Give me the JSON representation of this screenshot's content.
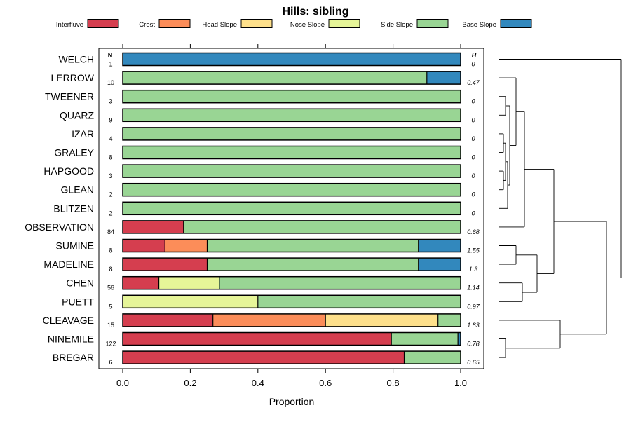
{
  "chart_data": {
    "type": "bar",
    "orientation": "horizontal",
    "stacked": true,
    "title": "Hills: sibling",
    "xlabel": "Proportion",
    "ylabel": "",
    "xlim": [
      -0.07,
      1.07
    ],
    "xticks": [
      0.0,
      0.2,
      0.4,
      0.6,
      0.8,
      1.0
    ],
    "xtick_labels": [
      "0.0",
      "0.2",
      "0.4",
      "0.6",
      "0.8",
      "1.0"
    ],
    "n_header": "N",
    "h_header": "H",
    "legend_position": "top",
    "legend": [
      {
        "name": "Interfluve",
        "color": "#D53E4F"
      },
      {
        "name": "Crest",
        "color": "#FC8D59"
      },
      {
        "name": "Head Slope",
        "color": "#FEE08B"
      },
      {
        "name": "Nose Slope",
        "color": "#E6F598"
      },
      {
        "name": "Side Slope",
        "color": "#99D594"
      },
      {
        "name": "Base Slope",
        "color": "#3288BD"
      }
    ],
    "rows": [
      {
        "label": "WELCH",
        "n": "1",
        "h": "0",
        "values": [
          0,
          0,
          0,
          0,
          0,
          1.0
        ]
      },
      {
        "label": "LERROW",
        "n": "10",
        "h": "0.47",
        "values": [
          0,
          0,
          0,
          0,
          0.9,
          0.1
        ]
      },
      {
        "label": "TWEENER",
        "n": "3",
        "h": "0",
        "values": [
          0,
          0,
          0,
          0,
          1.0,
          0
        ]
      },
      {
        "label": "QUARZ",
        "n": "9",
        "h": "0",
        "values": [
          0,
          0,
          0,
          0,
          1.0,
          0
        ]
      },
      {
        "label": "IZAR",
        "n": "4",
        "h": "0",
        "values": [
          0,
          0,
          0,
          0,
          1.0,
          0
        ]
      },
      {
        "label": "GRALEY",
        "n": "8",
        "h": "0",
        "values": [
          0,
          0,
          0,
          0,
          1.0,
          0
        ]
      },
      {
        "label": "HAPGOOD",
        "n": "3",
        "h": "0",
        "values": [
          0,
          0,
          0,
          0,
          1.0,
          0
        ]
      },
      {
        "label": "GLEAN",
        "n": "2",
        "h": "0",
        "values": [
          0,
          0,
          0,
          0,
          1.0,
          0
        ]
      },
      {
        "label": "BLITZEN",
        "n": "2",
        "h": "0",
        "values": [
          0,
          0,
          0,
          0,
          1.0,
          0
        ]
      },
      {
        "label": "OBSERVATION",
        "n": "84",
        "h": "0.68",
        "values": [
          0.18,
          0,
          0,
          0,
          0.82,
          0
        ]
      },
      {
        "label": "SUMINE",
        "n": "8",
        "h": "1.55",
        "values": [
          0.125,
          0.125,
          0,
          0,
          0.625,
          0.125
        ]
      },
      {
        "label": "MADELINE",
        "n": "8",
        "h": "1.3",
        "values": [
          0.25,
          0,
          0,
          0,
          0.625,
          0.125
        ]
      },
      {
        "label": "CHEN",
        "n": "56",
        "h": "1.14",
        "values": [
          0.107,
          0,
          0,
          0.179,
          0.714,
          0
        ]
      },
      {
        "label": "PUETT",
        "n": "5",
        "h": "0.97",
        "values": [
          0,
          0,
          0,
          0.4,
          0.6,
          0
        ]
      },
      {
        "label": "CLEAVAGE",
        "n": "15",
        "h": "1.83",
        "values": [
          0.267,
          0.333,
          0.333,
          0,
          0.067,
          0
        ]
      },
      {
        "label": "NINEMILE",
        "n": "122",
        "h": "0.78",
        "values": [
          0.795,
          0,
          0,
          0,
          0.197,
          0.008
        ]
      },
      {
        "label": "BREGAR",
        "n": "6",
        "h": "0.65",
        "values": [
          0.833,
          0,
          0,
          0,
          0.167,
          0
        ]
      }
    ],
    "dendrogram": {
      "leaves_in_order": [
        "WELCH",
        "LERROW",
        "TWEENER",
        "QUARZ",
        "IZAR",
        "GRALEY",
        "HAPGOOD",
        "GLEAN",
        "BLITZEN",
        "OBSERVATION",
        "SUMINE",
        "MADELINE",
        "CHEN",
        "PUETT",
        "CLEAVAGE",
        "NINEMILE",
        "BREGAR"
      ],
      "merges": [
        {
          "a": "TWEENER",
          "b": "QUARZ",
          "height": 0.03
        },
        {
          "a": "IZAR",
          "b": "GRALEY",
          "height": 0.02
        },
        {
          "a": "HAPGOOD",
          "b": "GLEAN",
          "height": 0.02
        },
        {
          "a": "$2",
          "b": "$3",
          "height": 0.03
        },
        {
          "a": "$4",
          "b": "BLITZEN",
          "height": 0.04
        },
        {
          "a": "$1",
          "b": "$5",
          "height": 0.05
        },
        {
          "a": "LERROW",
          "b": "$6",
          "height": 0.08
        },
        {
          "a": "$7",
          "b": "OBSERVATION",
          "height": 0.12
        },
        {
          "a": "SUMINE",
          "b": "MADELINE",
          "height": 0.08
        },
        {
          "a": "CHEN",
          "b": "PUETT",
          "height": 0.11
        },
        {
          "a": "$9",
          "b": "$10",
          "height": 0.18
        },
        {
          "a": "$8",
          "b": "$11",
          "height": 0.26
        },
        {
          "a": "NINEMILE",
          "b": "BREGAR",
          "height": 0.03
        },
        {
          "a": "CLEAVAGE",
          "b": "$13",
          "height": 0.29
        },
        {
          "a": "$12",
          "b": "$14",
          "height": 0.51
        },
        {
          "a": "WELCH",
          "b": "$15",
          "height": 0.58
        }
      ],
      "max_height": 0.6
    }
  }
}
